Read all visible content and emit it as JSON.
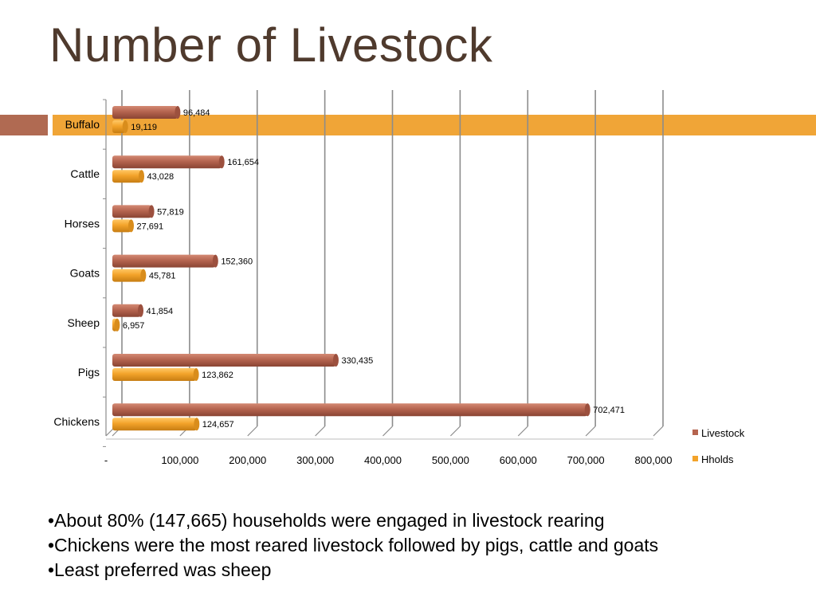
{
  "slide": {
    "title": "Number of Livestock",
    "bullets": [
      "•About 80%  (147,665) households were engaged in livestock rearing",
      "•Chickens were the most reared livestock followed by pigs, cattle and goats",
      "•Least preferred was sheep"
    ],
    "colors": {
      "title": "#4f3a2d",
      "band_main": "#f0a537",
      "band_left": "#b06a52"
    }
  },
  "chart_data": {
    "type": "bar",
    "orientation": "horizontal",
    "categories": [
      "Buffalo",
      "Cattle",
      "Horses",
      "Goats",
      "Sheep",
      "Pigs",
      "Chickens"
    ],
    "series": [
      {
        "name": "Livestock",
        "color": "#b5644f",
        "values": [
          96484,
          161654,
          57819,
          152360,
          41854,
          330435,
          702471
        ]
      },
      {
        "name": "Hholds",
        "color": "#f3a32a",
        "values": [
          19119,
          43028,
          27691,
          45781,
          6957,
          123862,
          124657
        ]
      }
    ],
    "data_labels": {
      "Livestock": [
        "96,484",
        "161,654",
        "57,819",
        "152,360",
        "41,854",
        "330,435",
        "702,471"
      ],
      "Hholds": [
        "19,119",
        "43,028",
        "27,691",
        "45,781",
        "6,957",
        "123,862",
        "124,657"
      ]
    },
    "xlim": [
      0,
      800000
    ],
    "x_ticks": [
      "-",
      "100,000",
      "200,000",
      "300,000",
      "400,000",
      "500,000",
      "600,000",
      "700,000",
      "800,000"
    ],
    "x_tick_values": [
      0,
      100000,
      200000,
      300000,
      400000,
      500000,
      600000,
      700000,
      800000
    ],
    "legend": {
      "position": "right",
      "entries": [
        "Livestock",
        "Hholds"
      ]
    },
    "grid": true,
    "style": "3d-cylinder"
  }
}
